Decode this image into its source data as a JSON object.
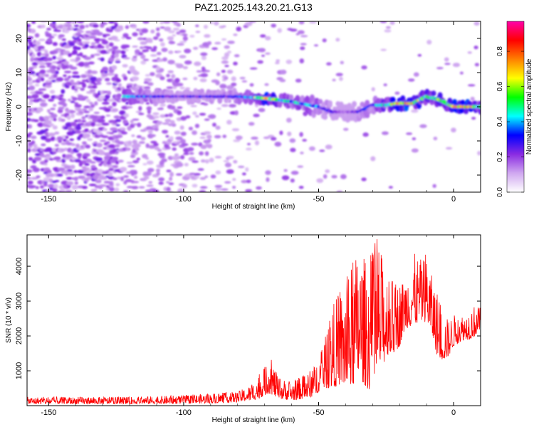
{
  "title": "PAZ1.2025.143.20.21.G13",
  "chart_data": [
    {
      "type": "heatmap",
      "xlabel": "Height of straight line (km)",
      "ylabel": "Frequency (Hz)",
      "xlim": [
        -158,
        10
      ],
      "ylim": [
        -25,
        25
      ],
      "xticks": [
        -150,
        -100,
        -50,
        0
      ],
      "yticks": [
        -20,
        -10,
        0,
        10,
        20
      ],
      "colorbar": {
        "label": "Normalized spectral amplitude",
        "range": [
          0,
          0.97
        ],
        "ticks": [
          0.0,
          0.2,
          0.4,
          0.6,
          0.8
        ],
        "tick_labels": [
          "0.0",
          "0.2",
          "0.4",
          "0.6",
          "0.8"
        ],
        "colors": [
          "#ffffff",
          "#d0a8f0",
          "#8a2be2",
          "#0000ff",
          "#00ffff",
          "#00ff00",
          "#ffff00",
          "#ff8000",
          "#ff0000",
          "#ff00aa"
        ]
      },
      "ridge": {
        "x": [
          -122,
          -110,
          -100,
          -90,
          -80,
          -70,
          -60,
          -50,
          -45,
          -40,
          -35,
          -30,
          -25,
          -20,
          -15,
          -10,
          -5,
          0,
          5,
          10
        ],
        "y": [
          3,
          3,
          3,
          3,
          3,
          2.5,
          1.5,
          0,
          -1.5,
          -1.5,
          -1.5,
          0.5,
          0.5,
          1,
          1,
          3,
          2,
          0,
          0,
          0
        ],
        "amplitude": [
          0.45,
          0.35,
          0.25,
          0.3,
          0.35,
          0.75,
          0.5,
          0.4,
          0.3,
          0.2,
          0.3,
          0.4,
          0.55,
          0.85,
          0.7,
          0.55,
          0.6,
          0.8,
          0.85,
          0.55
        ]
      }
    },
    {
      "type": "line",
      "xlabel": "Height of straight line (km)",
      "ylabel": "SNR (10 * v/v)",
      "xlim": [
        -158,
        10
      ],
      "ylim": [
        0,
        4900
      ],
      "xticks": [
        -150,
        -100,
        -50,
        0
      ],
      "yticks": [
        1000,
        2000,
        3000,
        4000
      ],
      "series": [
        {
          "color": "#ff0000",
          "envelope": {
            "x": [
              -158,
              -140,
              -120,
              -100,
              -90,
              -80,
              -75,
              -72,
              -70,
              -68,
              -65,
              -60,
              -55,
              -52,
              -50,
              -48,
              -45,
              -42,
              -40,
              -38,
              -35,
              -32,
              -30,
              -28,
              -26,
              -24,
              -22,
              -20,
              -18,
              -15,
              -12,
              -10,
              -8,
              -6,
              -4,
              -2,
              0,
              2,
              4,
              6,
              8,
              10
            ],
            "low": [
              50,
              50,
              50,
              60,
              70,
              100,
              150,
              200,
              300,
              350,
              200,
              150,
              200,
              250,
              400,
              500,
              500,
              600,
              500,
              500,
              800,
              500,
              400,
              800,
              1200,
              1500,
              1500,
              1700,
              2200,
              2300,
              2400,
              2400,
              2000,
              1400,
              1300,
              1400,
              1700,
              1800,
              1900,
              1900,
              2000,
              2200
            ],
            "high": [
              250,
              250,
              250,
              300,
              350,
              400,
              600,
              900,
              1100,
              1450,
              800,
              700,
              900,
              1100,
              1400,
              1800,
              2900,
              3300,
              3600,
              4000,
              4600,
              4100,
              4500,
              4900,
              4100,
              3900,
              3500,
              3600,
              3700,
              4400,
              4200,
              4500,
              3700,
              3300,
              2600,
              2500,
              2600,
              2700,
              2600,
              2800,
              2900,
              2800
            ]
          }
        }
      ]
    }
  ]
}
